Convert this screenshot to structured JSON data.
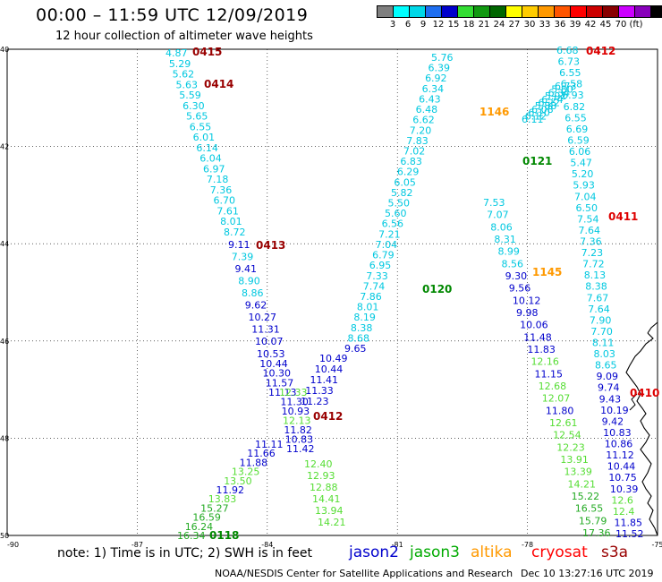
{
  "header": {
    "title": "00:00 – 11:59 UTC 12/09/2019",
    "subtitle": "12 hour collection of altimeter wave heights"
  },
  "colorbar": {
    "colors": [
      "#7f7f7f",
      "#00ffff",
      "#00d8e8",
      "#1e6ef0",
      "#0000cc",
      "#33dd33",
      "#119911",
      "#006600",
      "#ffff00",
      "#ffcc00",
      "#ff9900",
      "#ff5500",
      "#ff0000",
      "#cc0000",
      "#880000",
      "#cc00ff",
      "#8800bb",
      "#000000"
    ],
    "labels": [
      "3",
      "6",
      "9",
      "12",
      "15",
      "18",
      "21",
      "24",
      "27",
      "30",
      "33",
      "36",
      "39",
      "42",
      "45",
      "70",
      "(ft)"
    ]
  },
  "map": {
    "lat_labels": [
      "40",
      "42",
      "44",
      "46",
      "48",
      "50"
    ],
    "lon_labels": [
      "-90",
      "-87",
      "-84",
      "-81",
      "-78",
      "-75"
    ],
    "lat_ticks": [
      40,
      42,
      44,
      46,
      48,
      50
    ],
    "lon_ticks": [
      -87,
      -84,
      -81,
      -78,
      -75
    ]
  },
  "tracks": [
    {
      "name": "0415 track",
      "color_key": "jason2",
      "time_label": "0415",
      "time_color": "#990000",
      "values": [
        "4.87",
        "5.29",
        "5.62",
        "5.63",
        "5.59",
        "6.30",
        "5.65",
        "6.55",
        "6.01",
        "6.14",
        "6.04",
        "6.97",
        "7.18",
        "7.36",
        "6.70",
        "7.61",
        "8.01",
        "8.72"
      ]
    },
    {
      "name": "0414",
      "time_label": "0414",
      "time_color": "#990000",
      "values": []
    },
    {
      "name": "0413 track",
      "time_label": "0413",
      "time_color": "#990000",
      "values": [
        "9.11",
        "7.39",
        "9.41",
        "8.90",
        "8.86",
        "9.62",
        "10.27",
        "11.31",
        "10.07",
        "10.53",
        "10.44",
        "10.30",
        "11.57",
        "11.13",
        "12.33",
        "11.30",
        "10.93",
        "12.13",
        "11.82",
        "10.83",
        "11.42",
        "12.40",
        "12.93",
        "12.88",
        "14.41",
        "13.94",
        "14.21"
      ]
    },
    {
      "name": "0412 track",
      "time_label": "0412",
      "time_color": "#990000",
      "values": []
    },
    {
      "name": "0118",
      "time_label": "0118",
      "time_color": "#008800",
      "values": []
    },
    {
      "name": "0120",
      "time_label": "0120",
      "time_color": "#008800",
      "values": []
    },
    {
      "name": "0121",
      "time_label": "0121",
      "time_color": "#008800",
      "values": []
    },
    {
      "name": "1146",
      "time_label": "1146",
      "time_color": "#ff9900",
      "values": []
    },
    {
      "name": "1145",
      "time_label": "1145",
      "time_color": "#ff9900",
      "values": []
    },
    {
      "name": "0412 red",
      "time_label": "0412",
      "time_color": "#dd0000",
      "values": []
    },
    {
      "name": "0411",
      "time_label": "0411",
      "time_color": "#dd0000",
      "values": []
    },
    {
      "name": "0410",
      "time_label": "0410",
      "time_color": "#dd0000",
      "values": []
    }
  ],
  "labels_left_ascending": [
    "9.65",
    "8.68",
    "8.38",
    "8.19",
    "8.01",
    "7.86",
    "7.74",
    "7.33",
    "6.95",
    "6.79",
    "7.04",
    "7.21",
    "6.56",
    "5.60",
    "5.50",
    "5.82",
    "6.05",
    "6.29",
    "6.83",
    "7.02",
    "7.83",
    "7.20",
    "6.62",
    "6.48",
    "6.43",
    "6.34",
    "6.92",
    "6.39",
    "5.76"
  ],
  "labels_center_descending": [
    "7.53",
    "7.07",
    "8.06",
    "8.31",
    "8.99",
    "8.56",
    "9.30",
    "9.56",
    "10.12",
    "9.98",
    "10.06",
    "11.48",
    "11.83",
    "12.16",
    "11.15",
    "12.68",
    "12.07",
    "11.80",
    "12.61",
    "12.54",
    "12.23",
    "13.91",
    "13.39",
    "14.21",
    "15.22",
    "16.55",
    "15.79",
    "17.36"
  ],
  "labels_right_col": [
    "6.68",
    "6.73",
    "6.55",
    "6.58",
    "6.93",
    "6.82",
    "6.55",
    "6.69",
    "6.59",
    "6.06",
    "5.47",
    "5.20",
    "5.93",
    "7.04",
    "6.50",
    "7.54",
    "7.64",
    "7.36",
    "7.23",
    "7.72",
    "8.13",
    "8.38",
    "7.67",
    "7.64",
    "7.90",
    "7.70",
    "8.11",
    "8.03",
    "8.65",
    "9.09",
    "9.74",
    "9.43",
    "10.19",
    "9.42",
    "10.83",
    "10.86",
    "11.12",
    "10.44",
    "10.75",
    "10.39",
    "12.6",
    "12.4",
    "11.85",
    "11.52"
  ],
  "labels_lower_left": [
    "11.11",
    "11.66",
    "11.88",
    "13.25",
    "13.50",
    "11.92",
    "13.83",
    "15.27",
    "16.59",
    "16.24",
    "16.34"
  ],
  "labels_mid_lower": [
    "10.49",
    "10.44",
    "11.41",
    "11.33",
    "11.23"
  ],
  "labels_upper_right_diag": [
    "6.11",
    "6.12",
    "6.10",
    "6.08",
    "5.88",
    "6.22",
    "6.74",
    "5.92",
    "6.34",
    "5.80",
    "6.73"
  ],
  "footer": {
    "note": "note: 1) Time is in UTC; 2) SWH is in feet",
    "satellites": [
      {
        "name": "jason2",
        "color": "#0000cc"
      },
      {
        "name": "jason3",
        "color": "#00aa00"
      },
      {
        "name": "altika",
        "color": "#ff9900"
      },
      {
        "name": "cryosat",
        "color": "#ff0000"
      },
      {
        "name": "s3a",
        "color": "#990000"
      }
    ],
    "credit": "NOAA/NESDIS Center for Satellite Applications and Research",
    "timestamp": "Dec 10 13:27:16 UTC 2019"
  }
}
